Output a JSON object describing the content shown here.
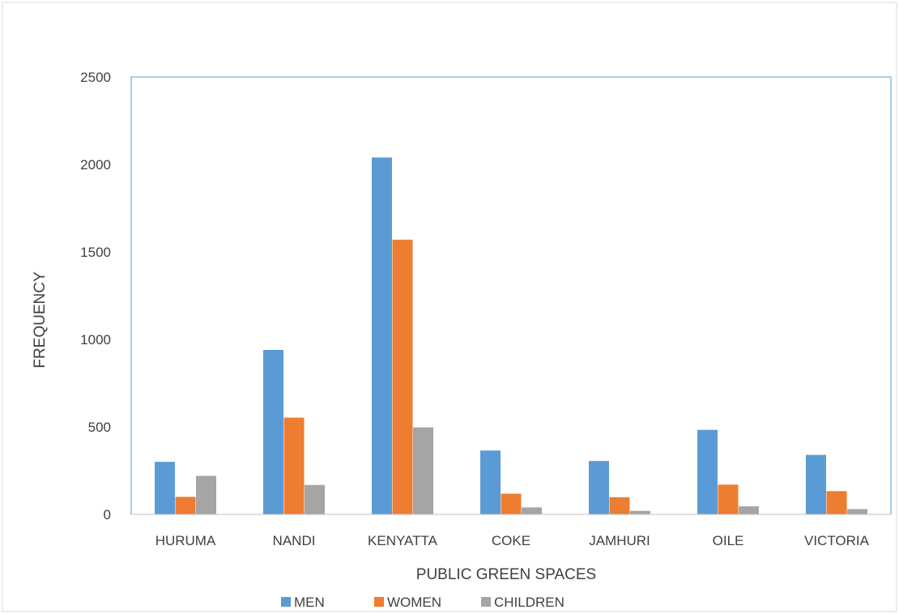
{
  "chart_data": {
    "type": "bar",
    "title": "",
    "xlabel": "PUBLIC GREEN SPACES",
    "ylabel": "FREQUENCY",
    "ylim": [
      0,
      2500
    ],
    "yticks": [
      0,
      500,
      1000,
      1500,
      2000,
      2500
    ],
    "grid": false,
    "legend_position": "bottom",
    "categories": [
      "HURUMA",
      "NANDI",
      "KENYATTA",
      "COKE",
      "JAMHURI",
      "OILE",
      "VICTORIA"
    ],
    "series": [
      {
        "name": "MEN",
        "color": "#5B9BD5",
        "values": [
          300,
          940,
          2040,
          365,
          305,
          483,
          340
        ]
      },
      {
        "name": "WOMEN",
        "color": "#ED7D31",
        "values": [
          100,
          553,
          1570,
          118,
          98,
          170,
          133
        ]
      },
      {
        "name": "CHILDREN",
        "color": "#A5A5A5",
        "values": [
          220,
          168,
          497,
          40,
          20,
          46,
          30
        ]
      }
    ]
  }
}
